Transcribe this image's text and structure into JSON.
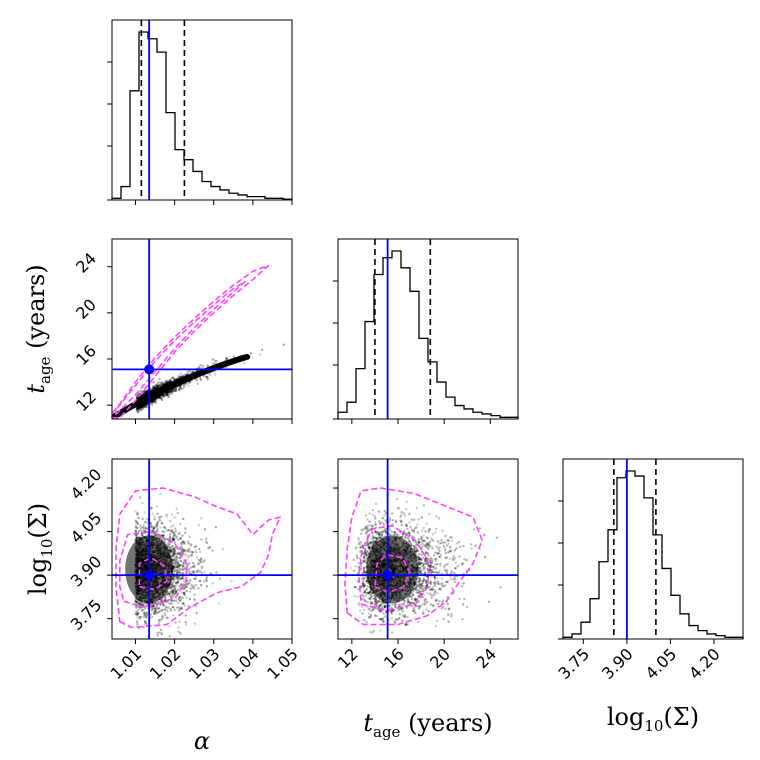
{
  "chart_data": {
    "type": "corner",
    "colors": {
      "truth": "#0000ff",
      "contour": "#ff44ff",
      "hist": "#000000",
      "quantile": "#000000",
      "scatter": "#000000"
    },
    "parameters": [
      {
        "key": "alpha",
        "range": [
          1.004,
          1.05
        ],
        "truth": 1.0135,
        "quantiles": [
          1.0115,
          1.0225
        ],
        "ticks": [
          1.01,
          1.02,
          1.03,
          1.04,
          1.05
        ],
        "tick_labels": [
          "1.01",
          "1.02",
          "1.03",
          "1.04",
          "1.05"
        ],
        "label_main": "α",
        "label_sub": "",
        "label_tail": "",
        "hist": [
          1,
          8,
          65,
          100,
          96,
          88,
          52,
          30,
          24,
          17,
          11,
          8,
          6,
          4,
          3,
          2,
          2,
          1,
          1,
          0.5
        ]
      },
      {
        "key": "t_age",
        "range": [
          10.8,
          26.4
        ],
        "truth": 15.1,
        "quantiles": [
          14.0,
          18.8
        ],
        "ticks": [
          12,
          16,
          20,
          24
        ],
        "tick_labels": [
          "12",
          "16",
          "20",
          "24"
        ],
        "label_main": "t",
        "label_sub": "age",
        "label_tail": " (years)",
        "hist": [
          4,
          10,
          30,
          58,
          86,
          96,
          100,
          90,
          76,
          48,
          34,
          22,
          13,
          8,
          6,
          4,
          3,
          2,
          1,
          1
        ]
      },
      {
        "key": "log10_Sigma",
        "range": [
          3.68,
          4.3
        ],
        "truth": 3.9,
        "quantiles": [
          3.855,
          4.0
        ],
        "ticks": [
          3.75,
          3.9,
          4.05,
          4.2
        ],
        "tick_labels": [
          "3.75",
          "3.90",
          "4.05",
          "4.20"
        ],
        "label_main": "log",
        "label_sub": "10",
        "label_tail": "(Σ)",
        "hist": [
          1,
          3,
          10,
          24,
          46,
          65,
          96,
          100,
          97,
          84,
          62,
          42,
          26,
          15,
          8,
          5,
          3,
          2,
          1,
          1
        ]
      }
    ],
    "panels_2d": [
      {
        "row": 1,
        "col": 0,
        "contours": [
          [
            [
              1.004,
              10.9
            ],
            [
              1.006,
              10.9
            ],
            [
              1.01,
              12.4
            ],
            [
              1.015,
              14.5
            ],
            [
              1.02,
              16.6
            ],
            [
              1.025,
              18.4
            ],
            [
              1.03,
              20.0
            ],
            [
              1.035,
              21.5
            ],
            [
              1.04,
              22.9
            ],
            [
              1.044,
              24.1
            ],
            [
              1.04,
              23.6
            ],
            [
              1.035,
              22.4
            ],
            [
              1.03,
              21.0
            ],
            [
              1.025,
              19.5
            ],
            [
              1.02,
              17.9
            ],
            [
              1.015,
              16.1
            ],
            [
              1.01,
              14.0
            ],
            [
              1.006,
              12.1
            ],
            [
              1.004,
              11.3
            ]
          ],
          [
            [
              1.005,
              11.2
            ],
            [
              1.01,
              12.9
            ],
            [
              1.015,
              14.9
            ],
            [
              1.02,
              16.9
            ],
            [
              1.025,
              18.7
            ],
            [
              1.03,
              20.3
            ],
            [
              1.035,
              21.8
            ],
            [
              1.038,
              22.7
            ],
            [
              1.035,
              22.1
            ],
            [
              1.03,
              20.7
            ],
            [
              1.025,
              19.2
            ],
            [
              1.02,
              17.6
            ],
            [
              1.015,
              15.8
            ],
            [
              1.01,
              13.7
            ],
            [
              1.005,
              11.6
            ]
          ]
        ]
      },
      {
        "row": 2,
        "col": 0,
        "contours": [
          [
            [
              1.006,
              3.74
            ],
            [
              1.009,
              3.72
            ],
            [
              1.018,
              3.73
            ],
            [
              1.024,
              3.79
            ],
            [
              1.031,
              3.84
            ],
            [
              1.037,
              3.86
            ],
            [
              1.042,
              3.91
            ],
            [
              1.044,
              3.97
            ],
            [
              1.045,
              4.04
            ],
            [
              1.047,
              4.1
            ],
            [
              1.044,
              4.09
            ],
            [
              1.04,
              4.04
            ],
            [
              1.036,
              4.11
            ],
            [
              1.03,
              4.14
            ],
            [
              1.025,
              4.17
            ],
            [
              1.017,
              4.2
            ],
            [
              1.01,
              4.19
            ],
            [
              1.006,
              4.11
            ],
            [
              1.005,
              3.99
            ],
            [
              1.005,
              3.86
            ]
          ],
          [
            [
              1.007,
              3.81
            ],
            [
              1.012,
              3.79
            ],
            [
              1.02,
              3.82
            ],
            [
              1.023,
              3.88
            ],
            [
              1.023,
              3.94
            ],
            [
              1.02,
              4.01
            ],
            [
              1.014,
              4.05
            ],
            [
              1.008,
              4.04
            ],
            [
              1.006,
              3.95
            ],
            [
              1.006,
              3.86
            ]
          ],
          [
            [
              1.011,
              3.86
            ],
            [
              1.015,
              3.85
            ],
            [
              1.018,
              3.88
            ],
            [
              1.0175,
              3.93
            ],
            [
              1.014,
              3.96
            ],
            [
              1.011,
              3.94
            ]
          ]
        ]
      },
      {
        "row": 2,
        "col": 1,
        "contours": [
          [
            [
              11.6,
              3.77
            ],
            [
              13.0,
              3.73
            ],
            [
              16.0,
              3.73
            ],
            [
              18.5,
              3.76
            ],
            [
              20.2,
              3.81
            ],
            [
              21.2,
              3.87
            ],
            [
              22.5,
              3.94
            ],
            [
              23.3,
              4.02
            ],
            [
              22.5,
              4.1
            ],
            [
              20.0,
              4.14
            ],
            [
              17.5,
              4.18
            ],
            [
              14.5,
              4.2
            ],
            [
              12.8,
              4.19
            ],
            [
              12.0,
              4.1
            ],
            [
              11.6,
              3.99
            ],
            [
              11.4,
              3.87
            ]
          ],
          [
            [
              12.8,
              3.8
            ],
            [
              15.0,
              3.78
            ],
            [
              17.5,
              3.8
            ],
            [
              18.6,
              3.86
            ],
            [
              18.6,
              3.95
            ],
            [
              17.5,
              4.02
            ],
            [
              15.5,
              4.07
            ],
            [
              13.8,
              4.06
            ],
            [
              12.9,
              3.99
            ],
            [
              12.6,
              3.9
            ]
          ],
          [
            [
              14.0,
              3.86
            ],
            [
              15.2,
              3.84
            ],
            [
              16.5,
              3.86
            ],
            [
              17.0,
              3.91
            ],
            [
              16.4,
              3.96
            ],
            [
              15.0,
              3.97
            ],
            [
              14.2,
              3.94
            ]
          ]
        ]
      }
    ]
  }
}
